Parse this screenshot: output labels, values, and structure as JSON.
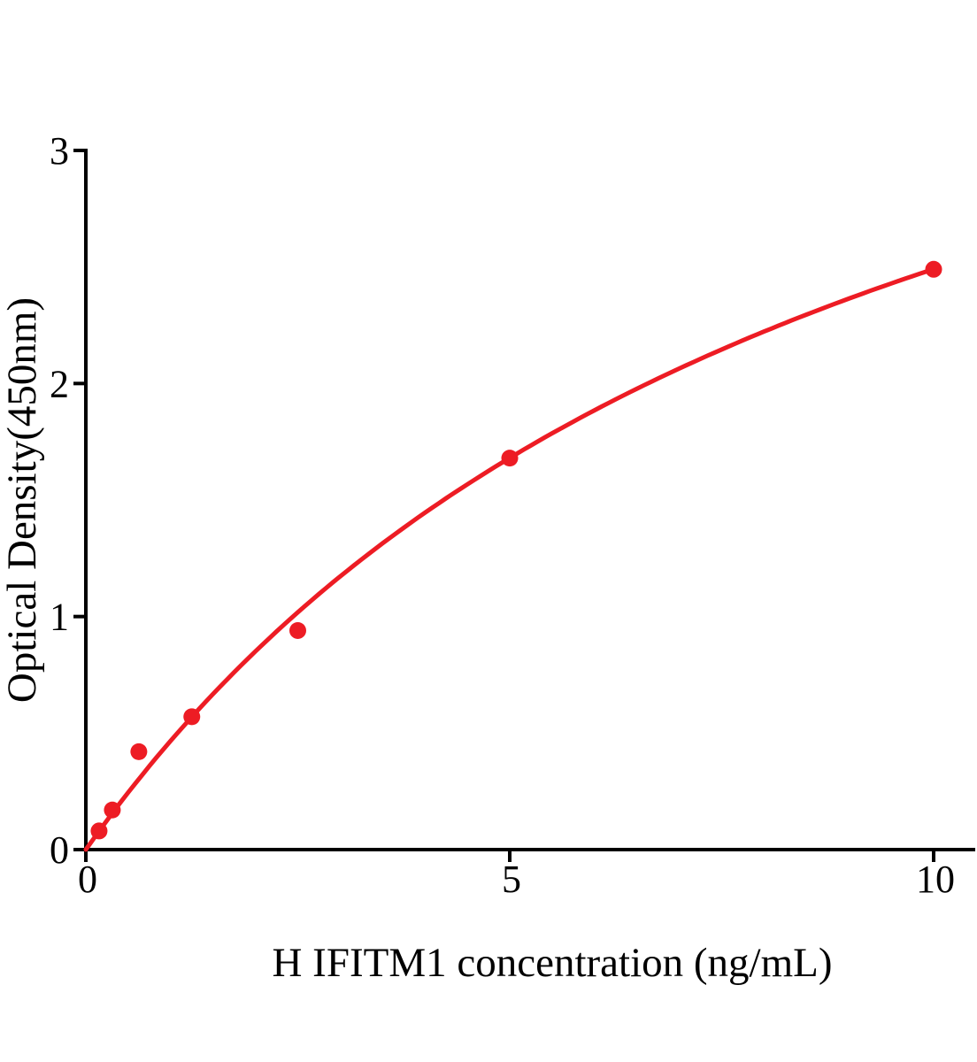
{
  "figure": {
    "background": "#ffffff"
  },
  "chart_data": {
    "type": "scatter",
    "title": "",
    "xlabel": "H IFITM1 concentration (ng/mL)",
    "ylabel": "Optical Density(450nm)",
    "x": [
      0.156,
      0.3125,
      0.625,
      1.25,
      2.5,
      5,
      10
    ],
    "y": [
      0.08,
      0.17,
      0.42,
      0.57,
      0.94,
      1.68,
      2.49
    ],
    "xlim": [
      0,
      10.5
    ],
    "ylim": [
      0,
      3
    ],
    "x_ticks": [
      {
        "value": 0,
        "label": "0"
      },
      {
        "value": 5,
        "label": "5"
      },
      {
        "value": 10,
        "label": "10"
      }
    ],
    "y_ticks": [
      {
        "value": 0,
        "label": "0"
      },
      {
        "value": 1,
        "label": "1"
      },
      {
        "value": 2,
        "label": "2"
      },
      {
        "value": 3,
        "label": "3"
      }
    ],
    "fit_curve": {
      "shape": "saturation-binding",
      "bmax": 4.81,
      "kd": 9.31,
      "x_range": [
        0,
        10
      ]
    },
    "marker_color": "#ED1C24",
    "line_color": "#ED1C24",
    "axis_color": "#000000",
    "grid": false,
    "legend": null
  }
}
